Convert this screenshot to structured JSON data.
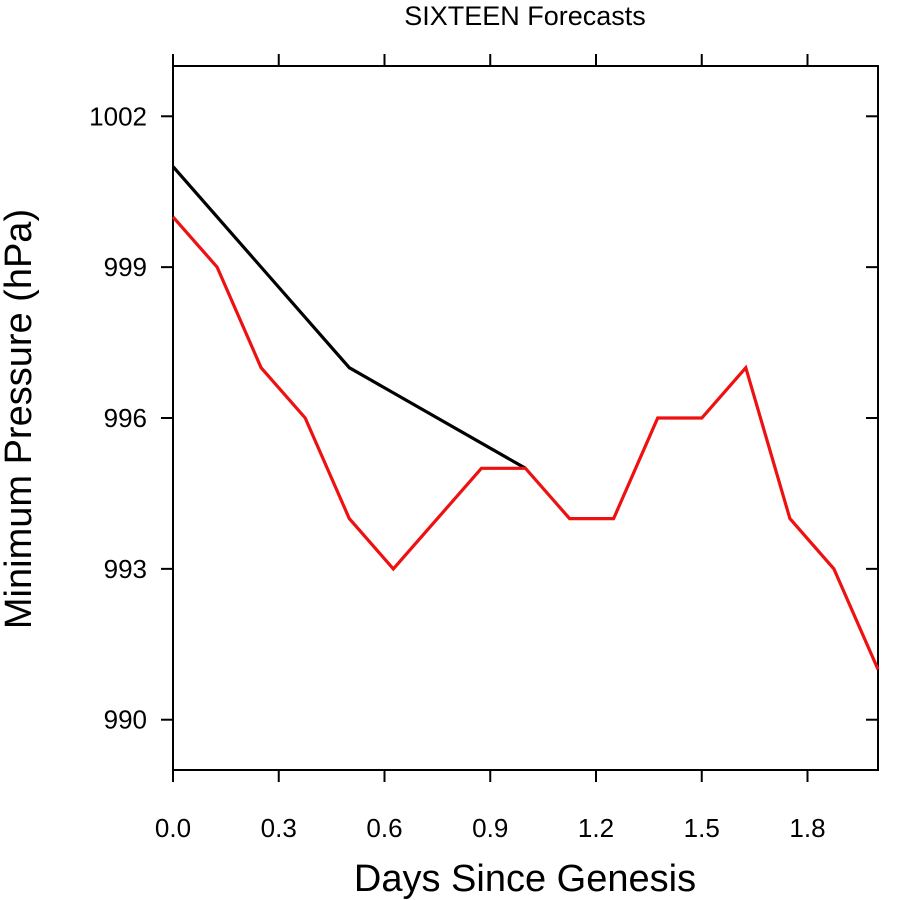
{
  "chart_data": {
    "type": "line",
    "title": "SIXTEEN Forecasts",
    "xlabel": "Days Since Genesis",
    "ylabel": "Minimum Pressure (hPa)",
    "xlim": [
      0.0,
      2.0
    ],
    "ylim": [
      989,
      1003
    ],
    "x_ticks": [
      0.0,
      0.3,
      0.6,
      0.9,
      1.2,
      1.5,
      1.8
    ],
    "x_tick_labels": [
      "0.0",
      "0.3",
      "0.6",
      "0.9",
      "1.2",
      "1.5",
      "1.8"
    ],
    "y_ticks": [
      990,
      993,
      996,
      999,
      1002
    ],
    "y_tick_labels": [
      "990",
      "993",
      "996",
      "999",
      "1002"
    ],
    "grid": false,
    "series": [
      {
        "color": "#000000",
        "x": [
          0.0,
          0.5,
          1.0
        ],
        "y": [
          1001,
          997,
          995
        ]
      },
      {
        "color": "#ee1111",
        "x": [
          0.0,
          0.125,
          0.25,
          0.375,
          0.5,
          0.625,
          0.75,
          0.875,
          1.0,
          1.125,
          1.25,
          1.375,
          1.5,
          1.625,
          1.75,
          1.875,
          2.0
        ],
        "y": [
          1000,
          999,
          997,
          996,
          994,
          993,
          994,
          995,
          995,
          994,
          994,
          996,
          996,
          997,
          994,
          993,
          991
        ]
      }
    ]
  }
}
